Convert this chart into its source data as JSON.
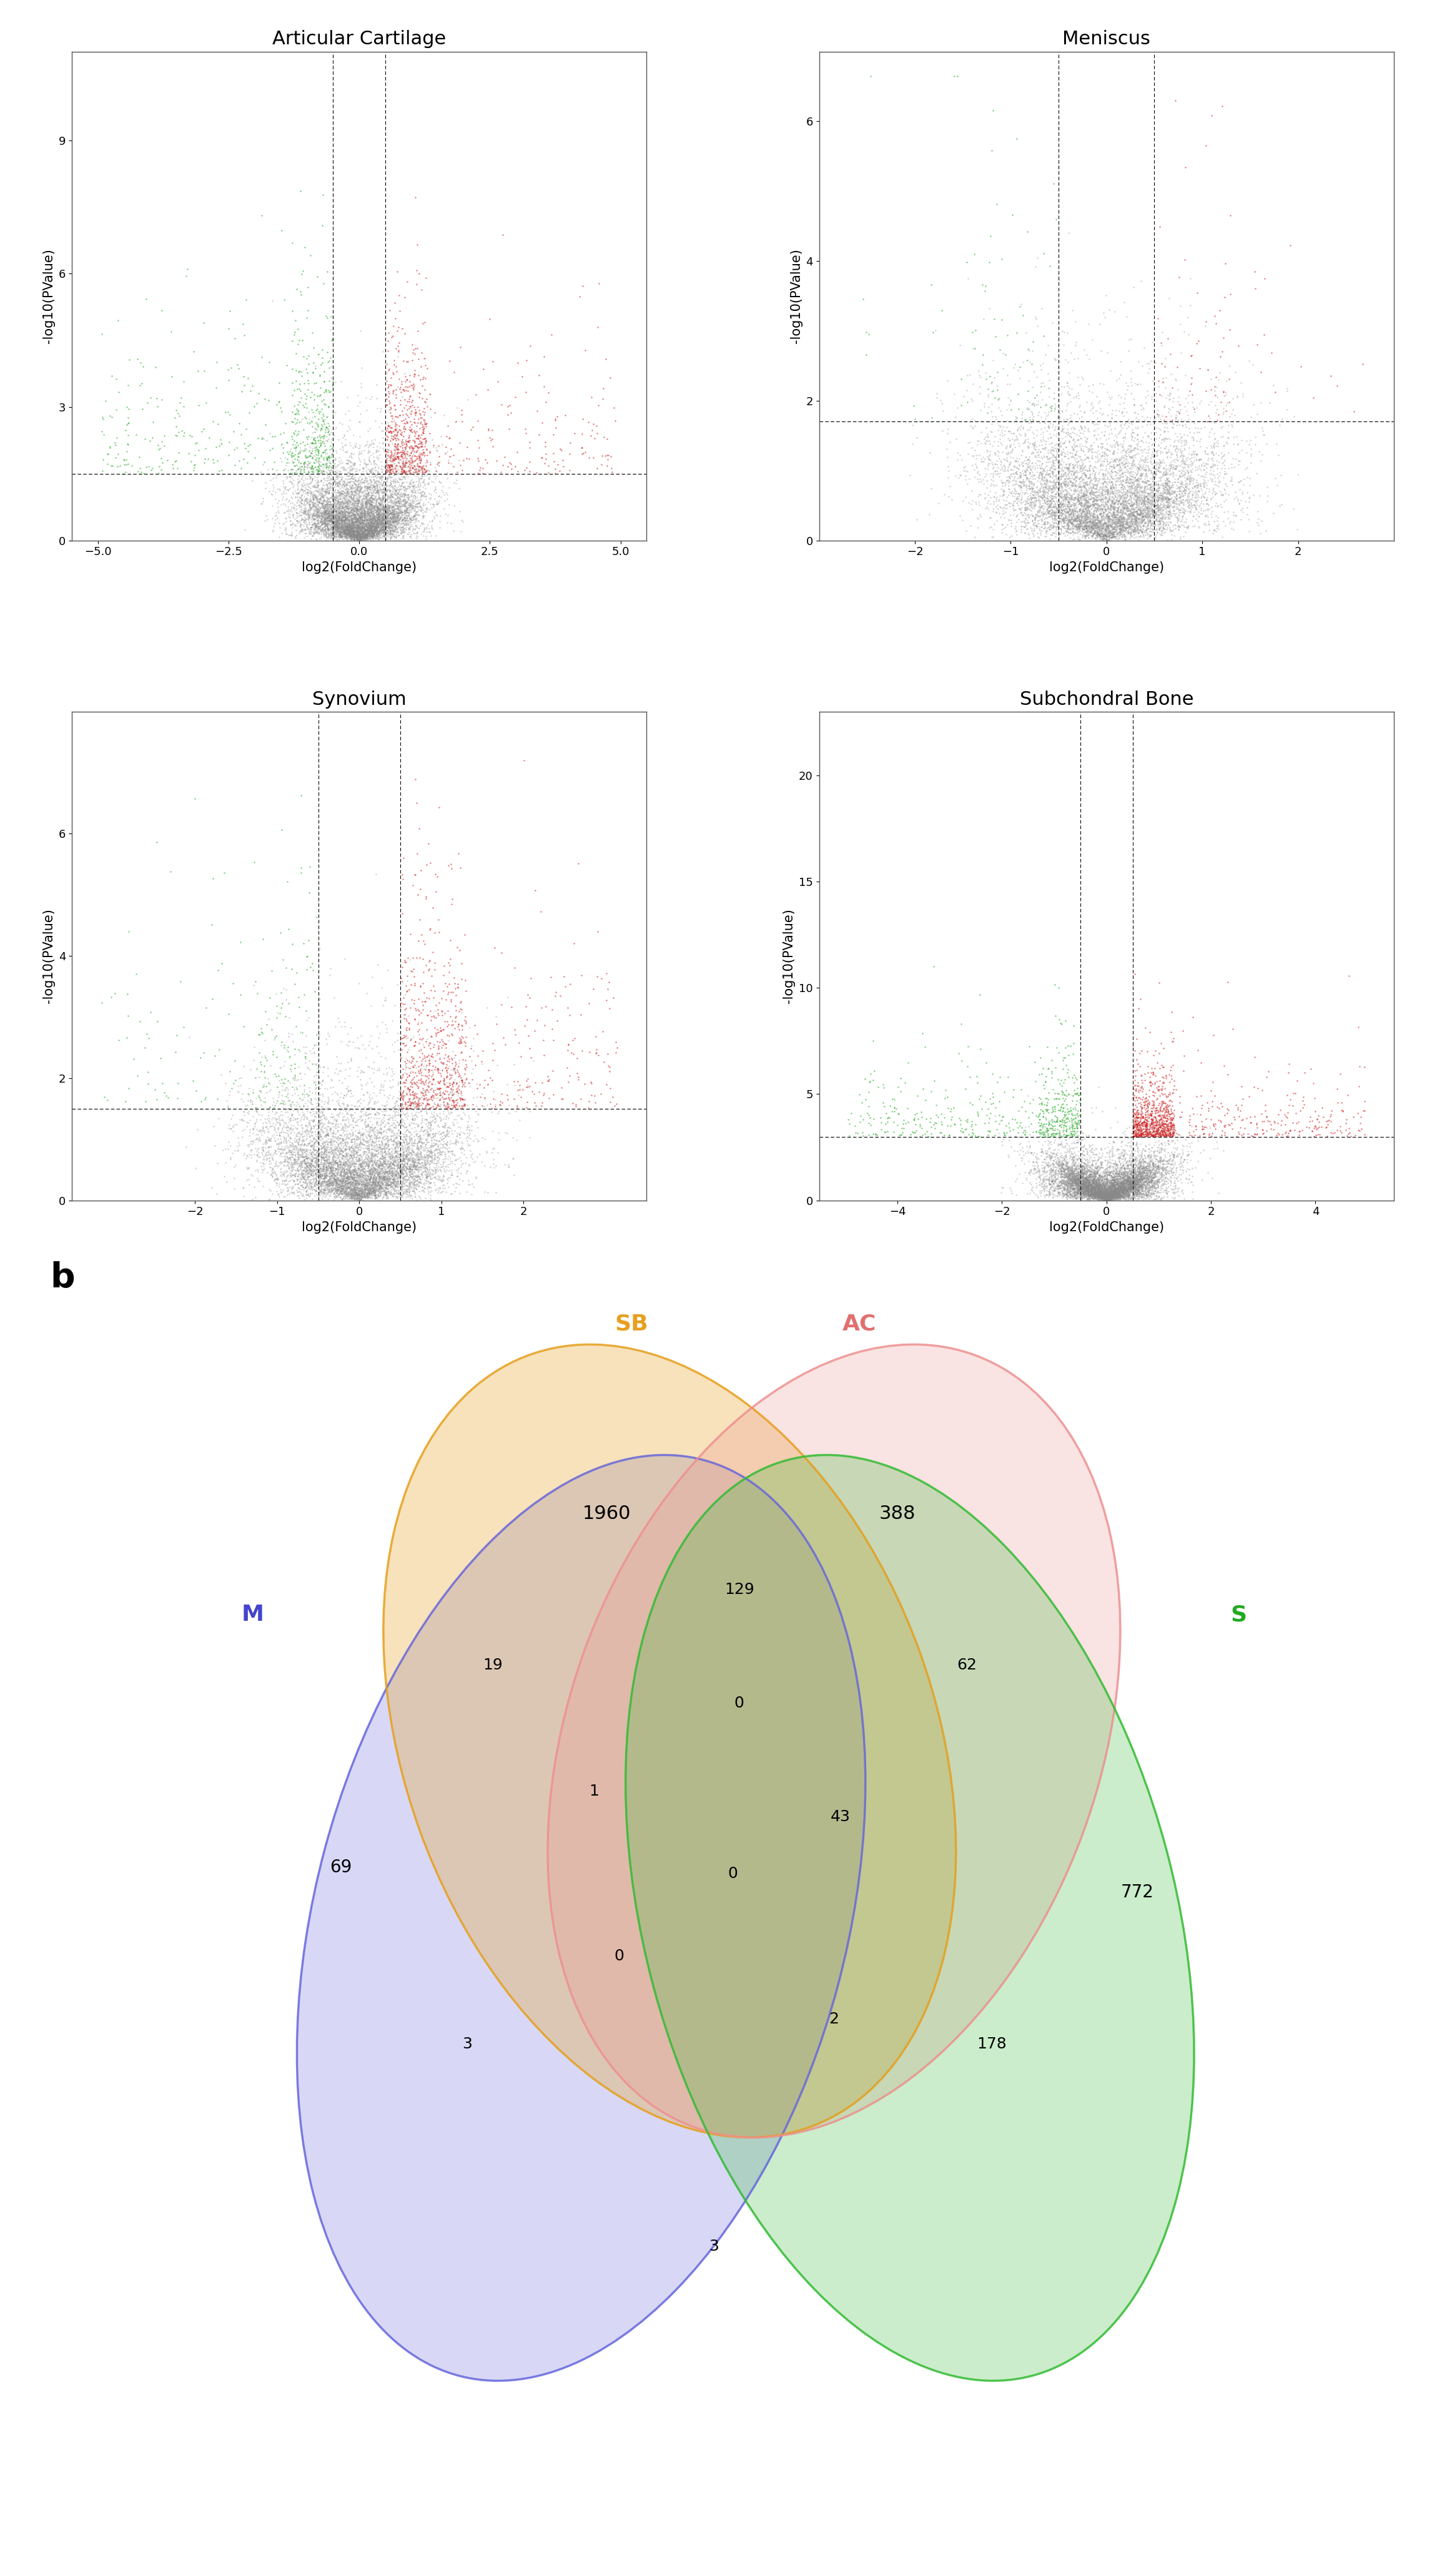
{
  "volcano_plots": [
    {
      "title": "Articular Cartilage",
      "xlim": [
        -5.5,
        5.5
      ],
      "ylim": [
        0,
        11
      ],
      "xticks": [
        -5.0,
        -2.5,
        0.0,
        2.5,
        5.0
      ],
      "yticks": [
        0,
        3,
        6,
        9
      ],
      "fc_threshold": 0.5,
      "pval_threshold": 1.5,
      "n_gray": 8000,
      "n_red": 800,
      "n_green": 600,
      "seed": 42
    },
    {
      "title": "Meniscus",
      "xlim": [
        -3.0,
        3.0
      ],
      "ylim": [
        0,
        7
      ],
      "xticks": [
        -2,
        -1,
        0,
        1,
        2
      ],
      "yticks": [
        0,
        2,
        4,
        6
      ],
      "fc_threshold": 0.5,
      "pval_threshold": 1.7,
      "n_gray": 8000,
      "n_red": 80,
      "n_green": 80,
      "seed": 43
    },
    {
      "title": "Synovium",
      "xlim": [
        -3.5,
        3.5
      ],
      "ylim": [
        0,
        8
      ],
      "xticks": [
        -2,
        -1,
        0,
        1,
        2
      ],
      "yticks": [
        0,
        2,
        4,
        6
      ],
      "fc_threshold": 0.5,
      "pval_threshold": 1.5,
      "n_gray": 8000,
      "n_red": 900,
      "n_green": 200,
      "seed": 44
    },
    {
      "title": "Subchondral Bone",
      "xlim": [
        -5.5,
        5.5
      ],
      "ylim": [
        0,
        23
      ],
      "xticks": [
        -4,
        -2,
        0,
        2,
        4
      ],
      "yticks": [
        0,
        5,
        10,
        15,
        20
      ],
      "fc_threshold": 0.5,
      "pval_threshold": 3.0,
      "n_gray": 8000,
      "n_red": 1200,
      "n_green": 600,
      "seed": 45
    }
  ],
  "venn": {
    "labels": [
      "M",
      "SB",
      "AC",
      "S"
    ],
    "label_colors": [
      "#4444cc",
      "#e6a020",
      "#e07070",
      "#22aa22"
    ],
    "counts": {
      "M_only": 69,
      "SB_only": 1960,
      "AC_only": 388,
      "S_only": 772,
      "M_SB": 19,
      "M_AC": 0,
      "M_S": 3,
      "SB_AC": 129,
      "SB_S": 178,
      "AC_S": 62,
      "M_SB_AC": 1,
      "M_SB_S": 0,
      "M_AC_S": 2,
      "SB_AC_S": 43,
      "M_SB_AC_S": 0,
      "M_SB_AC_extra": 0,
      "extra_3": 3
    }
  },
  "background_color": "#ffffff",
  "dot_size": 3,
  "dot_alpha": 0.6,
  "gray_color": "#888888",
  "red_color": "#cc2222",
  "green_color": "#22aa22"
}
